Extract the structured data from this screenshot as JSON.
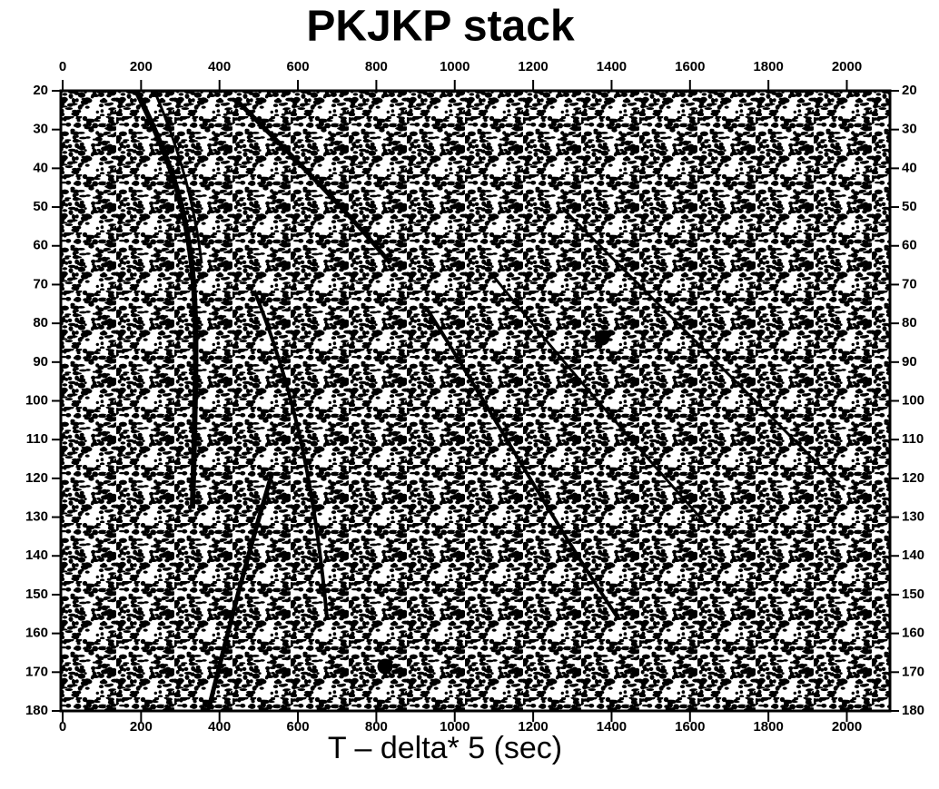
{
  "chart_data": {
    "type": "seismic",
    "title": "PKJKP  stack",
    "xlabel": "T – delta* 5 (sec)",
    "xlim": [
      0,
      2110
    ],
    "xticks": [
      0,
      200,
      400,
      600,
      800,
      1000,
      1200,
      1400,
      1600,
      1800,
      2000
    ],
    "ylim": [
      20,
      180
    ],
    "yticks": [
      20,
      30,
      40,
      50,
      60,
      70,
      80,
      90,
      100,
      110,
      120,
      130,
      140,
      150,
      160,
      170,
      180
    ],
    "y_inverted": true
  }
}
